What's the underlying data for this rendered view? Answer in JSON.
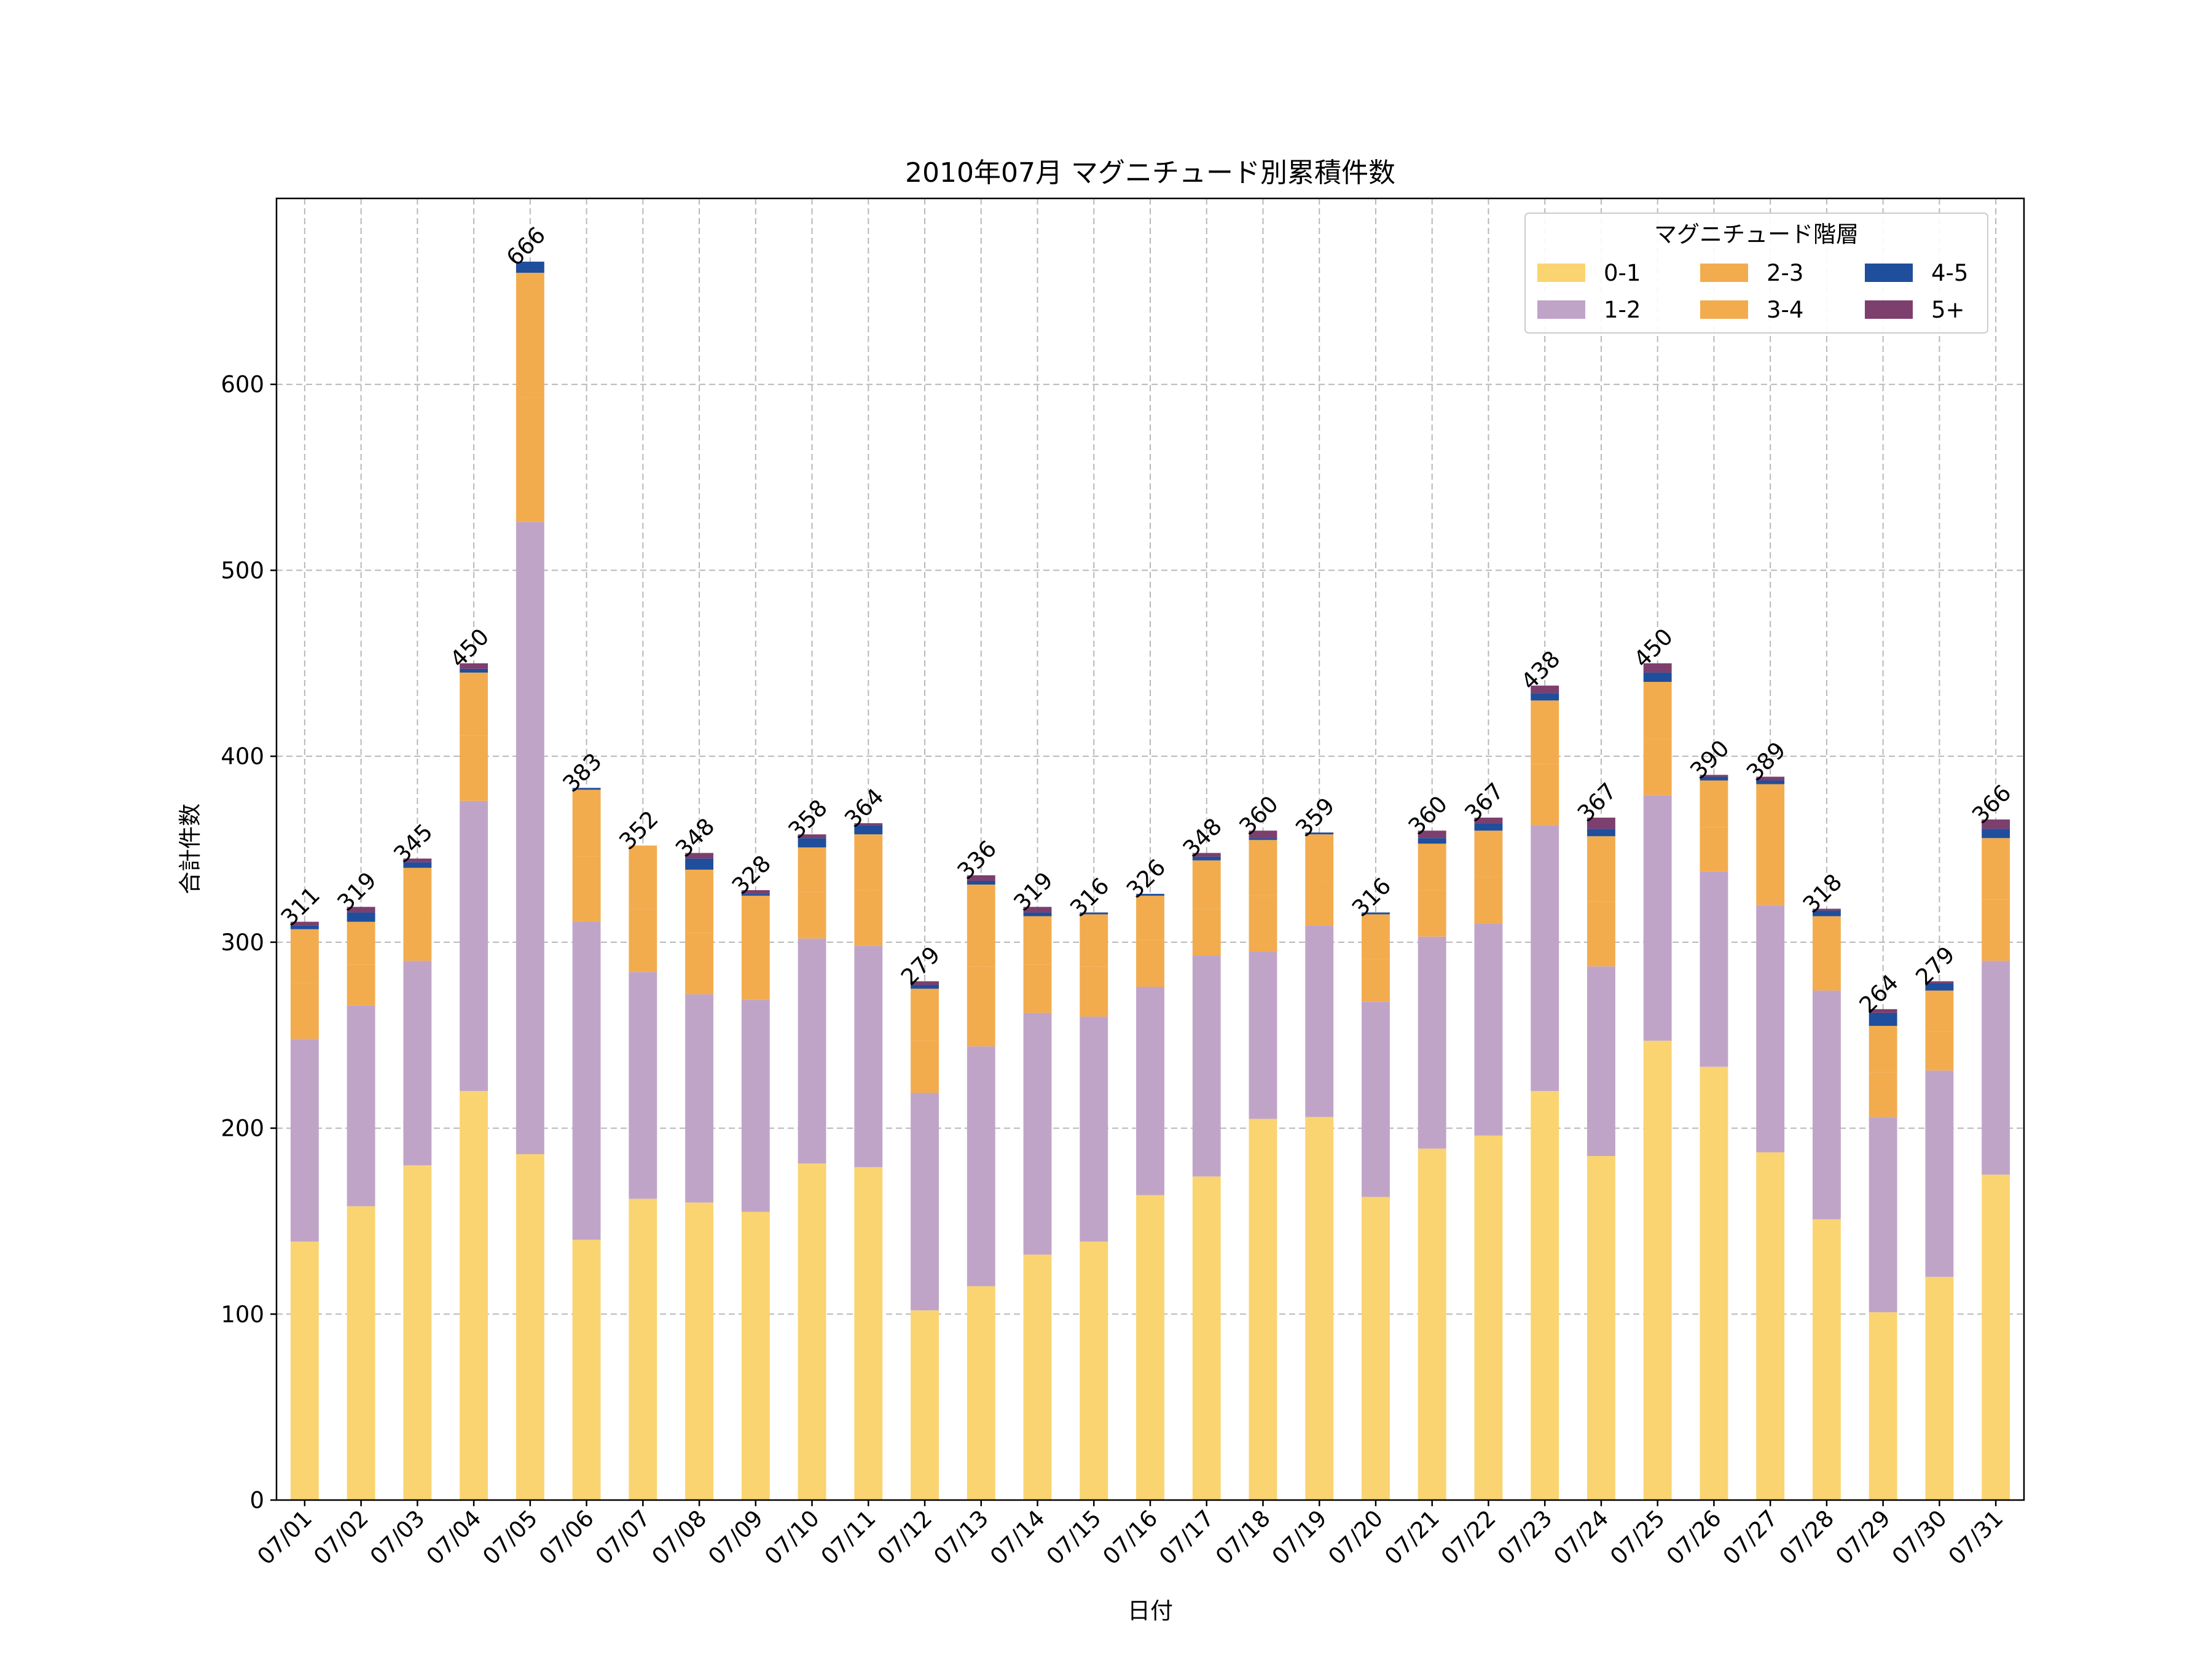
{
  "chart_data": {
    "type": "bar",
    "stacked": true,
    "title": "2010年07月 マグニチュード別累積件数",
    "xlabel": "日付",
    "ylabel": "合計件数",
    "ylim": [
      0,
      700
    ],
    "yticks": [
      0,
      100,
      200,
      300,
      400,
      500,
      600
    ],
    "grid": true,
    "legend": {
      "title": "マグニチュード階層",
      "position": "top-right",
      "columns": 3
    },
    "categories": [
      "07/01",
      "07/02",
      "07/03",
      "07/04",
      "07/05",
      "07/06",
      "07/07",
      "07/08",
      "07/09",
      "07/10",
      "07/11",
      "07/12",
      "07/13",
      "07/14",
      "07/15",
      "07/16",
      "07/17",
      "07/18",
      "07/19",
      "07/20",
      "07/21",
      "07/22",
      "07/23",
      "07/24",
      "07/25",
      "07/26",
      "07/27",
      "07/28",
      "07/29",
      "07/30",
      "07/31"
    ],
    "series": [
      {
        "name": "0-1",
        "color": "#fad470",
        "values": [
          139,
          158,
          180,
          220,
          186,
          140,
          162,
          160,
          155,
          181,
          179,
          102,
          115,
          132,
          139,
          164,
          174,
          205,
          206,
          163,
          189,
          196,
          220,
          185,
          247,
          233,
          187,
          151,
          101,
          120,
          175
        ]
      },
      {
        "name": "1-2",
        "color": "#c0a4c8",
        "values": [
          109,
          108,
          110,
          156,
          340,
          171,
          122,
          112,
          114,
          121,
          119,
          117,
          129,
          130,
          121,
          112,
          119,
          90,
          103,
          105,
          114,
          114,
          143,
          102,
          132,
          105,
          133,
          123,
          105,
          111,
          115
        ]
      },
      {
        "name": "2-3",
        "color": "#f2ac4e",
        "values": [
          30,
          22,
          25,
          35,
          67,
          35,
          34,
          33,
          28,
          25,
          30,
          28,
          43,
          26,
          27,
          25,
          25,
          30,
          24,
          23,
          25,
          25,
          33,
          35,
          30,
          24,
          32,
          20,
          24,
          21,
          33
        ]
      },
      {
        "name": "3-4",
        "color": "#f2ac4e",
        "values": [
          29,
          23,
          25,
          34,
          67,
          36,
          34,
          34,
          28,
          24,
          30,
          28,
          44,
          26,
          28,
          24,
          26,
          30,
          25,
          24,
          25,
          25,
          34,
          35,
          31,
          25,
          33,
          20,
          25,
          22,
          33
        ]
      },
      {
        "name": "4-5",
        "color": "#1f4e9c",
        "values": [
          2,
          5,
          3,
          2,
          6,
          1,
          0,
          6,
          1,
          5,
          5,
          2,
          2,
          2,
          1,
          1,
          2,
          1,
          1,
          1,
          3,
          4,
          4,
          4,
          5,
          2,
          2,
          3,
          7,
          4,
          5
        ]
      },
      {
        "name": "5+",
        "color": "#7c3f6e",
        "values": [
          2,
          3,
          2,
          3,
          0,
          0,
          0,
          3,
          2,
          2,
          1,
          2,
          3,
          3,
          0,
          0,
          2,
          4,
          0,
          0,
          4,
          3,
          4,
          6,
          5,
          1,
          2,
          1,
          2,
          1,
          5
        ]
      }
    ],
    "totals": [
      311,
      319,
      345,
      450,
      666,
      383,
      352,
      348,
      328,
      358,
      364,
      279,
      336,
      319,
      316,
      326,
      348,
      360,
      359,
      316,
      360,
      367,
      438,
      367,
      450,
      390,
      389,
      318,
      264,
      279,
      366
    ]
  }
}
